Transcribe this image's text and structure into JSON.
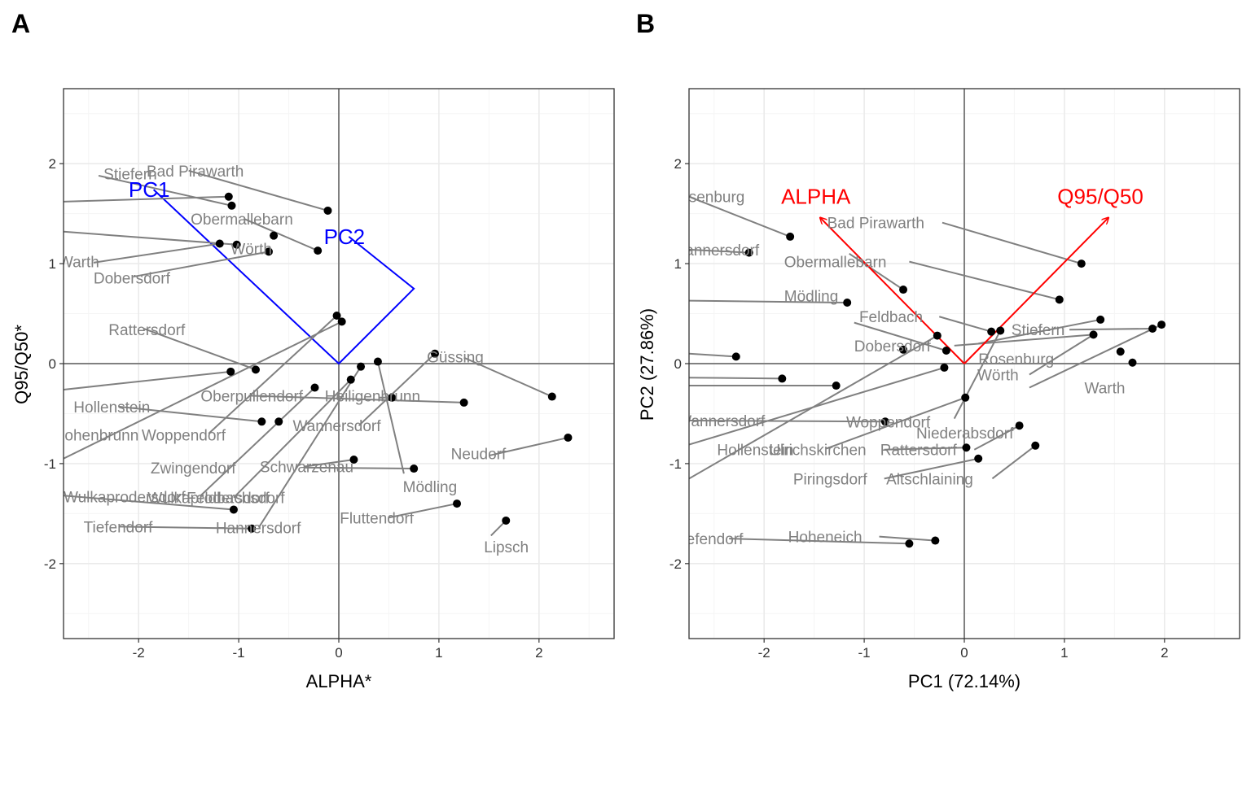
{
  "colors": {
    "background": "#ffffff",
    "grid_major": "#ebebeb",
    "grid_minor": "#f5f5f5",
    "zero_line": "#808080",
    "segment": "#808080",
    "point": "#000000",
    "label": "#808080",
    "pc_axes_color": "#0000ff",
    "loading_arrows_color": "#ff0000"
  },
  "chart_data": [
    {
      "panel": "A",
      "type": "scatter",
      "xlabel": "ALPHA*",
      "ylabel": "Q95/Q50*",
      "xlim": [
        -2.75,
        2.75
      ],
      "ylim": [
        -2.75,
        2.75
      ],
      "xticks": [
        -2,
        -1,
        0,
        1,
        2
      ],
      "yticks": [
        -2,
        -1,
        0,
        1,
        2
      ],
      "grid": true,
      "zero_lines": true,
      "points": [
        {
          "x": -1.1,
          "y": 1.67
        },
        {
          "x": -1.07,
          "y": 1.58
        },
        {
          "x": -0.11,
          "y": 1.53
        },
        {
          "x": -0.65,
          "y": 1.28
        },
        {
          "x": -1.19,
          "y": 1.2
        },
        {
          "x": -1.02,
          "y": 1.19
        },
        {
          "x": -0.7,
          "y": 1.12
        },
        {
          "x": -0.21,
          "y": 1.13
        },
        {
          "x": -0.02,
          "y": 0.48
        },
        {
          "x": 0.03,
          "y": 0.42
        },
        {
          "x": -0.83,
          "y": -0.06
        },
        {
          "x": -1.08,
          "y": -0.08
        },
        {
          "x": 0.96,
          "y": 0.1
        },
        {
          "x": 0.39,
          "y": 0.02
        },
        {
          "x": 0.22,
          "y": -0.03
        },
        {
          "x": 0.12,
          "y": -0.16
        },
        {
          "x": -0.24,
          "y": -0.24
        },
        {
          "x": 0.53,
          "y": -0.34
        },
        {
          "x": 1.25,
          "y": -0.39
        },
        {
          "x": 2.13,
          "y": -0.33
        },
        {
          "x": -0.77,
          "y": -0.58
        },
        {
          "x": -0.6,
          "y": -0.58
        },
        {
          "x": 2.29,
          "y": -0.74
        },
        {
          "x": 0.15,
          "y": -0.96
        },
        {
          "x": 0.75,
          "y": -1.05
        },
        {
          "x": -1.05,
          "y": -1.46
        },
        {
          "x": 1.18,
          "y": -1.4
        },
        {
          "x": 1.67,
          "y": -1.57
        },
        {
          "x": -0.87,
          "y": -1.65
        }
      ],
      "labels": [
        {
          "text": "Stiefern",
          "x": -2.35,
          "y": 1.9
        },
        {
          "text": "Bad Pirawarth",
          "x": -1.92,
          "y": 1.93
        },
        {
          "text": "Obermallebarn",
          "x": -1.48,
          "y": 1.45
        },
        {
          "text": "Wörth",
          "x": -1.08,
          "y": 1.15
        },
        {
          "text": "Warth",
          "x": -2.8,
          "y": 1.02
        },
        {
          "text": "Dobersdorf",
          "x": -2.45,
          "y": 0.86
        },
        {
          "text": "Rattersdorf",
          "x": -2.3,
          "y": 0.34
        },
        {
          "text": "Güssing",
          "x": 0.88,
          "y": 0.07
        },
        {
          "text": "Oberpullendorf",
          "x": -1.38,
          "y": -0.32
        },
        {
          "text": "Heiligenbrunn",
          "x": -0.14,
          "y": -0.32
        },
        {
          "text": "Hollenstein",
          "x": -2.65,
          "y": -0.43
        },
        {
          "text": "Wannersdorf",
          "x": -0.46,
          "y": -0.62
        },
        {
          "text": "Hohenbrunn",
          "x": -2.85,
          "y": -0.71
        },
        {
          "text": "Woppendorf",
          "x": -1.97,
          "y": -0.71
        },
        {
          "text": "Neudorf",
          "x": 1.12,
          "y": -0.9
        },
        {
          "text": "Zwingendorf",
          "x": -1.88,
          "y": -1.04
        },
        {
          "text": "Schwarzenau",
          "x": -0.79,
          "y": -1.03
        },
        {
          "text": "Mödling",
          "x": 0.64,
          "y": -1.23
        },
        {
          "text": "Wulkaprodersdorf",
          "x": -2.75,
          "y": -1.33
        },
        {
          "text": "Wulkaprodersdorf",
          "x": -1.91,
          "y": -1.34
        },
        {
          "text": "Feldbachsdorf",
          "x": -1.52,
          "y": -1.34
        },
        {
          "text": "Fluttendorf",
          "x": 0.01,
          "y": -1.54
        },
        {
          "text": "Tiefendorf",
          "x": -2.55,
          "y": -1.63
        },
        {
          "text": "Hannersdorf",
          "x": -1.23,
          "y": -1.64
        },
        {
          "text": "Lipsch",
          "x": 1.45,
          "y": -1.83
        }
      ],
      "segments": [
        {
          "x1": -2.75,
          "y1": 1.62,
          "x2": -1.1,
          "y2": 1.67
        },
        {
          "x1": -2.4,
          "y1": 1.88,
          "x2": -1.07,
          "y2": 1.58
        },
        {
          "x1": -1.5,
          "y1": 1.93,
          "x2": -0.11,
          "y2": 1.53
        },
        {
          "x1": -0.95,
          "y1": 1.45,
          "x2": -0.21,
          "y2": 1.13
        },
        {
          "x1": -2.75,
          "y1": 1.32,
          "x2": -1.02,
          "y2": 1.19
        },
        {
          "x1": -2.45,
          "y1": 1.01,
          "x2": -1.19,
          "y2": 1.2
        },
        {
          "x1": -2.05,
          "y1": 0.87,
          "x2": -0.7,
          "y2": 1.12
        },
        {
          "x1": -1.95,
          "y1": 0.35,
          "x2": -0.83,
          "y2": -0.06
        },
        {
          "x1": -2.75,
          "y1": -0.26,
          "x2": -1.08,
          "y2": -0.08
        },
        {
          "x1": 1.25,
          "y1": 0.06,
          "x2": 2.13,
          "y2": -0.33
        },
        {
          "x1": -0.9,
          "y1": -0.32,
          "x2": 1.25,
          "y2": -0.39
        },
        {
          "x1": 0.4,
          "y1": -0.34,
          "x2": 0.53,
          "y2": -0.34
        },
        {
          "x1": -2.2,
          "y1": -0.43,
          "x2": -0.77,
          "y2": -0.58
        },
        {
          "x1": -1.3,
          "y1": -0.7,
          "x2": -0.02,
          "y2": 0.48
        },
        {
          "x1": -2.75,
          "y1": -0.95,
          "x2": 0.03,
          "y2": 0.42
        },
        {
          "x1": 0.2,
          "y1": -0.62,
          "x2": 0.96,
          "y2": 0.1
        },
        {
          "x1": 0.39,
          "y1": 0.02,
          "x2": 0.65,
          "y2": -1.1
        },
        {
          "x1": 1.5,
          "y1": -0.92,
          "x2": 2.29,
          "y2": -0.74
        },
        {
          "x1": -0.35,
          "y1": -1.03,
          "x2": 0.15,
          "y2": -0.96
        },
        {
          "x1": -0.35,
          "y1": -1.04,
          "x2": 0.75,
          "y2": -1.05
        },
        {
          "x1": -1.38,
          "y1": -1.32,
          "x2": -0.24,
          "y2": -0.24
        },
        {
          "x1": -2.75,
          "y1": -1.32,
          "x2": -1.05,
          "y2": -1.46
        },
        {
          "x1": -1.05,
          "y1": -1.34,
          "x2": 0.12,
          "y2": -0.16
        },
        {
          "x1": -0.8,
          "y1": -1.64,
          "x2": 0.22,
          "y2": -0.03
        },
        {
          "x1": 0.5,
          "y1": -1.54,
          "x2": 1.18,
          "y2": -1.4
        },
        {
          "x1": 1.52,
          "y1": -1.72,
          "x2": 1.67,
          "y2": -1.57
        },
        {
          "x1": -2.2,
          "y1": -1.63,
          "x2": -0.87,
          "y2": -1.65
        }
      ],
      "pc_axes": {
        "polyline": [
          [
            -1.85,
            1.74
          ],
          [
            0.0,
            0.0
          ],
          [
            0.75,
            0.75
          ],
          [
            0.1,
            1.27
          ]
        ],
        "labels": [
          {
            "text": "PC1",
            "x": -2.1,
            "y": 1.74
          },
          {
            "text": "PC2",
            "x": -0.15,
            "y": 1.27
          }
        ]
      }
    },
    {
      "panel": "B",
      "type": "scatter",
      "xlabel": "PC1 (72.14%)",
      "ylabel": "PC2 (27.86%)",
      "xlim": [
        -2.75,
        2.75
      ],
      "ylim": [
        -2.75,
        2.75
      ],
      "xticks": [
        -2,
        -1,
        0,
        1,
        2
      ],
      "yticks": [
        -2,
        -1,
        0,
        1,
        2
      ],
      "grid": true,
      "zero_lines": true,
      "points": [
        {
          "x": -1.74,
          "y": 1.27
        },
        {
          "x": -2.15,
          "y": 1.11
        },
        {
          "x": 1.17,
          "y": 1.0
        },
        {
          "x": -0.61,
          "y": 0.74
        },
        {
          "x": 0.95,
          "y": 0.64
        },
        {
          "x": -1.17,
          "y": 0.61
        },
        {
          "x": 1.36,
          "y": 0.44
        },
        {
          "x": 1.97,
          "y": 0.39
        },
        {
          "x": 1.88,
          "y": 0.35
        },
        {
          "x": 0.27,
          "y": 0.32
        },
        {
          "x": 0.36,
          "y": 0.33
        },
        {
          "x": 1.29,
          "y": 0.29
        },
        {
          "x": -0.27,
          "y": 0.28
        },
        {
          "x": -0.18,
          "y": 0.13
        },
        {
          "x": -0.61,
          "y": 0.14
        },
        {
          "x": 1.56,
          "y": 0.12
        },
        {
          "x": -2.28,
          "y": 0.07
        },
        {
          "x": 1.68,
          "y": 0.01
        },
        {
          "x": -0.2,
          "y": -0.04
        },
        {
          "x": -1.82,
          "y": -0.15
        },
        {
          "x": -1.28,
          "y": -0.22
        },
        {
          "x": 0.01,
          "y": -0.34
        },
        {
          "x": -0.79,
          "y": -0.58
        },
        {
          "x": 0.55,
          "y": -0.62
        },
        {
          "x": 0.71,
          "y": -0.82
        },
        {
          "x": 0.02,
          "y": -0.84
        },
        {
          "x": 0.14,
          "y": -0.95
        },
        {
          "x": -0.29,
          "y": -1.77
        },
        {
          "x": -0.55,
          "y": -1.8
        }
      ],
      "labels": [
        {
          "text": "Rosenburg",
          "x": -2.95,
          "y": 1.67
        },
        {
          "text": "Bad Pirawarth",
          "x": -1.37,
          "y": 1.41
        },
        {
          "text": "Hannersdorf",
          "x": -2.9,
          "y": 1.14
        },
        {
          "text": "Obermallebarn",
          "x": -1.8,
          "y": 1.02
        },
        {
          "text": "Mödling",
          "x": -1.8,
          "y": 0.68
        },
        {
          "text": "Feldbach",
          "x": -1.05,
          "y": 0.47
        },
        {
          "text": "Stiefern",
          "x": 0.47,
          "y": 0.34
        },
        {
          "text": "Dobersdorf",
          "x": -1.1,
          "y": 0.18
        },
        {
          "text": "Rosenburg",
          "x": 0.14,
          "y": 0.05
        },
        {
          "text": "Wörth",
          "x": 0.13,
          "y": -0.11
        },
        {
          "text": "Warth",
          "x": 1.2,
          "y": -0.24
        },
        {
          "text": "Wannersdorf",
          "x": -2.87,
          "y": -0.57
        },
        {
          "text": "Woppendorf",
          "x": -1.18,
          "y": -0.58
        },
        {
          "text": "Niederabsdorf",
          "x": -0.48,
          "y": -0.69
        },
        {
          "text": "Hollenstein",
          "x": -2.47,
          "y": -0.86
        },
        {
          "text": "Ulrichskirchen",
          "x": -1.95,
          "y": -0.86
        },
        {
          "text": "Rattersdorf",
          "x": -0.84,
          "y": -0.86
        },
        {
          "text": "Piringsdorf",
          "x": -1.71,
          "y": -1.15
        },
        {
          "text": "Altschlaining",
          "x": -0.78,
          "y": -1.15
        },
        {
          "text": "Tiefendorf",
          "x": -2.9,
          "y": -1.75
        },
        {
          "text": "Hoheneich",
          "x": -1.76,
          "y": -1.73
        }
      ],
      "segments": [
        {
          "x1": -2.75,
          "y1": 1.67,
          "x2": -1.74,
          "y2": 1.27
        },
        {
          "x1": -0.22,
          "y1": 1.41,
          "x2": 1.17,
          "y2": 1.0
        },
        {
          "x1": -2.75,
          "y1": 1.14,
          "x2": -2.15,
          "y2": 1.11
        },
        {
          "x1": -0.55,
          "y1": 1.02,
          "x2": 0.95,
          "y2": 0.64
        },
        {
          "x1": -1.15,
          "y1": 1.1,
          "x2": -0.61,
          "y2": 0.74
        },
        {
          "x1": -2.75,
          "y1": 0.63,
          "x2": -1.17,
          "y2": 0.61
        },
        {
          "x1": -0.25,
          "y1": 0.47,
          "x2": 0.27,
          "y2": 0.32
        },
        {
          "x1": 1.05,
          "y1": 0.34,
          "x2": 1.88,
          "y2": 0.35
        },
        {
          "x1": -1.1,
          "y1": 0.41,
          "x2": -0.18,
          "y2": 0.13
        },
        {
          "x1": -0.1,
          "y1": 0.18,
          "x2": 1.29,
          "y2": 0.29
        },
        {
          "x1": 0.14,
          "y1": 0.2,
          "x2": 1.36,
          "y2": 0.44
        },
        {
          "x1": 0.65,
          "y1": -0.11,
          "x2": 1.29,
          "y2": 0.29
        },
        {
          "x1": 0.65,
          "y1": -0.24,
          "x2": 1.97,
          "y2": 0.39
        },
        {
          "x1": -2.75,
          "y1": 0.1,
          "x2": -2.28,
          "y2": 0.07
        },
        {
          "x1": -2.75,
          "y1": -0.22,
          "x2": -1.28,
          "y2": -0.22
        },
        {
          "x1": -2.75,
          "y1": -0.14,
          "x2": -1.82,
          "y2": -0.15
        },
        {
          "x1": -2.75,
          "y1": -0.57,
          "x2": -0.79,
          "y2": -0.58
        },
        {
          "x1": -2.75,
          "y1": -0.81,
          "x2": -0.2,
          "y2": -0.04
        },
        {
          "x1": -2.75,
          "y1": -1.15,
          "x2": -0.27,
          "y2": 0.28
        },
        {
          "x1": -1.38,
          "y1": -0.85,
          "x2": 0.01,
          "y2": -0.34
        },
        {
          "x1": -0.1,
          "y1": -0.55,
          "x2": 0.36,
          "y2": 0.33
        },
        {
          "x1": 0.1,
          "y1": -0.86,
          "x2": 0.55,
          "y2": -0.62
        },
        {
          "x1": 0.28,
          "y1": -1.15,
          "x2": 0.71,
          "y2": -0.82
        },
        {
          "x1": -0.8,
          "y1": -0.86,
          "x2": 0.02,
          "y2": -0.84
        },
        {
          "x1": -0.8,
          "y1": -1.15,
          "x2": 0.14,
          "y2": -0.95
        },
        {
          "x1": -2.35,
          "y1": -1.75,
          "x2": -0.55,
          "y2": -1.8
        },
        {
          "x1": -0.85,
          "y1": -1.73,
          "x2": -0.29,
          "y2": -1.77
        }
      ],
      "arrows": [
        {
          "name": "ALPHA",
          "x": -1.44,
          "y": 1.46,
          "label": "ALPHA",
          "label_x": -1.83,
          "label_y": 1.67
        },
        {
          "name": "Q95/Q50",
          "x": 1.44,
          "y": 1.46,
          "label": "Q95/Q50",
          "label_x": 0.93,
          "label_y": 1.67
        }
      ]
    }
  ]
}
